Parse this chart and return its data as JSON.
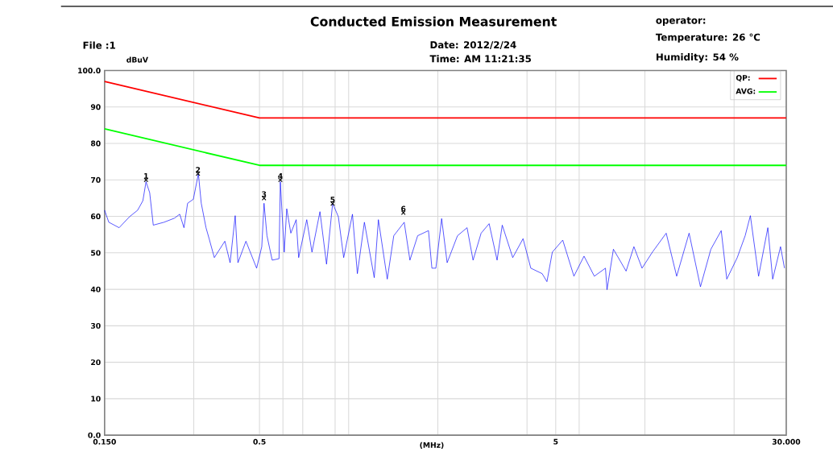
{
  "chart_data": {
    "type": "line",
    "title": "Conducted Emission Measurement",
    "xlabel": "(MHz)",
    "ylabel": "dBuV",
    "annotations": [
      "File :1",
      "Date: 2012/2/24",
      "Time: AM 11:21:35",
      "operator:",
      "Temperature: 26 ℃",
      "Humidity: 54 %",
      {
        "text": "1",
        "x": 0.207,
        "y": 70
      },
      {
        "text": "2",
        "x": 0.31,
        "y": 71.7
      },
      {
        "text": "3",
        "x": 0.518,
        "y": 65
      },
      {
        "text": "4",
        "x": 0.588,
        "y": 70
      },
      {
        "text": "5",
        "x": 0.883,
        "y": 63.5
      },
      {
        "text": "6",
        "x": 1.53,
        "y": 61
      }
    ],
    "log": "x",
    "grid": true,
    "legend": "top right",
    "xlim": [
      0.15,
      30
    ],
    "ylim": [
      0,
      100
    ],
    "xticks": [
      {
        "value": 0.15,
        "label": "0.150"
      },
      {
        "value": 0.3,
        "label": null
      },
      {
        "value": 0.5,
        "label": "0.5"
      },
      {
        "value": 0.6,
        "label": null
      },
      {
        "value": 0.7,
        "label": null
      },
      {
        "value": 0.9,
        "label": null
      },
      {
        "value": 1,
        "label": null
      },
      {
        "value": 2,
        "label": null
      },
      {
        "value": 4,
        "label": null
      },
      {
        "value": 5,
        "label": "5"
      },
      {
        "value": 6,
        "label": null
      },
      {
        "value": 10,
        "label": null
      },
      {
        "value": 20,
        "label": null
      },
      {
        "value": 30,
        "label": "30.000"
      }
    ],
    "yticks": [
      {
        "value": 0,
        "label": "0.0"
      },
      10,
      20,
      30,
      40,
      50,
      60,
      70,
      80,
      90,
      {
        "value": 100,
        "label": "100.0"
      }
    ],
    "series": [
      {
        "color": "#0000ff",
        "x": [
          0.15,
          0.155,
          0.168,
          0.182,
          0.194,
          0.202,
          0.207,
          0.213,
          0.219,
          0.238,
          0.258,
          0.269,
          0.278,
          0.286,
          0.299,
          0.311,
          0.318,
          0.33,
          0.338,
          0.352,
          0.382,
          0.398,
          0.414,
          0.423,
          0.45,
          0.489,
          0.509,
          0.518,
          0.53,
          0.552,
          0.582,
          0.588,
          0.606,
          0.618,
          0.638,
          0.665,
          0.678,
          0.722,
          0.752,
          0.8,
          0.842,
          0.883,
          0.923,
          0.962,
          1.03,
          1.07,
          1.13,
          1.22,
          1.26,
          1.35,
          1.42,
          1.54,
          1.61,
          1.71,
          1.86,
          1.91,
          1.97,
          2.06,
          2.15,
          2.33,
          2.51,
          2.63,
          2.8,
          2.98,
          3.17,
          3.3,
          3.58,
          3.88,
          4.12,
          4.5,
          4.67,
          4.87,
          5.28,
          5.76,
          6.23,
          6.75,
          7.36,
          7.45,
          7.83,
          8.64,
          9.18,
          9.78,
          10.6,
          11.8,
          12.8,
          14.1,
          15.4,
          16.7,
          18.1,
          18.9,
          20.5,
          21.8,
          22.7,
          24.2,
          26.0,
          27.0,
          28.7,
          29.6
        ],
        "values": [
          61.7,
          58.4,
          56.9,
          59.9,
          61.7,
          64.3,
          69.5,
          66.5,
          57.6,
          58.4,
          59.5,
          60.6,
          56.9,
          63.6,
          64.7,
          71.7,
          63.6,
          56.9,
          53.9,
          48.7,
          53.2,
          47.3,
          60.2,
          47.3,
          53.2,
          45.8,
          51.7,
          63.6,
          54.7,
          48.0,
          48.4,
          69.5,
          50.2,
          62.1,
          55.4,
          59.1,
          48.7,
          59.1,
          50.2,
          61.3,
          46.9,
          63.6,
          59.9,
          48.7,
          60.6,
          44.3,
          58.4,
          43.2,
          59.1,
          42.8,
          54.7,
          58.4,
          48.0,
          54.7,
          56.1,
          45.8,
          45.8,
          59.4,
          47.3,
          54.7,
          56.9,
          48.0,
          55.4,
          58.0,
          48.0,
          57.6,
          48.7,
          53.9,
          45.8,
          44.3,
          42.1,
          50.2,
          53.5,
          43.6,
          49.1,
          43.6,
          45.8,
          39.9,
          51.0,
          45.0,
          51.7,
          45.8,
          50.2,
          55.4,
          43.6,
          55.4,
          40.7,
          51.0,
          56.1,
          42.8,
          48.7,
          54.7,
          60.2,
          43.6,
          56.9,
          42.8,
          51.7,
          45.8
        ]
      },
      {
        "name": "QP:",
        "color": "#ff0000",
        "x": [
          0.15,
          0.5,
          30
        ],
        "values": [
          97,
          87,
          87
        ]
      },
      {
        "name": "AVG:",
        "color": "#00ff00",
        "x": [
          0.15,
          0.5,
          30
        ],
        "values": [
          84,
          74,
          74
        ]
      },
      {
        "type": "scatter",
        "marker": "cross",
        "color": "#000000",
        "x": [
          0.207,
          0.31,
          0.518,
          0.588,
          0.883,
          1.53
        ],
        "values": [
          70,
          71.7,
          65,
          70,
          63.5,
          61
        ]
      }
    ]
  }
}
